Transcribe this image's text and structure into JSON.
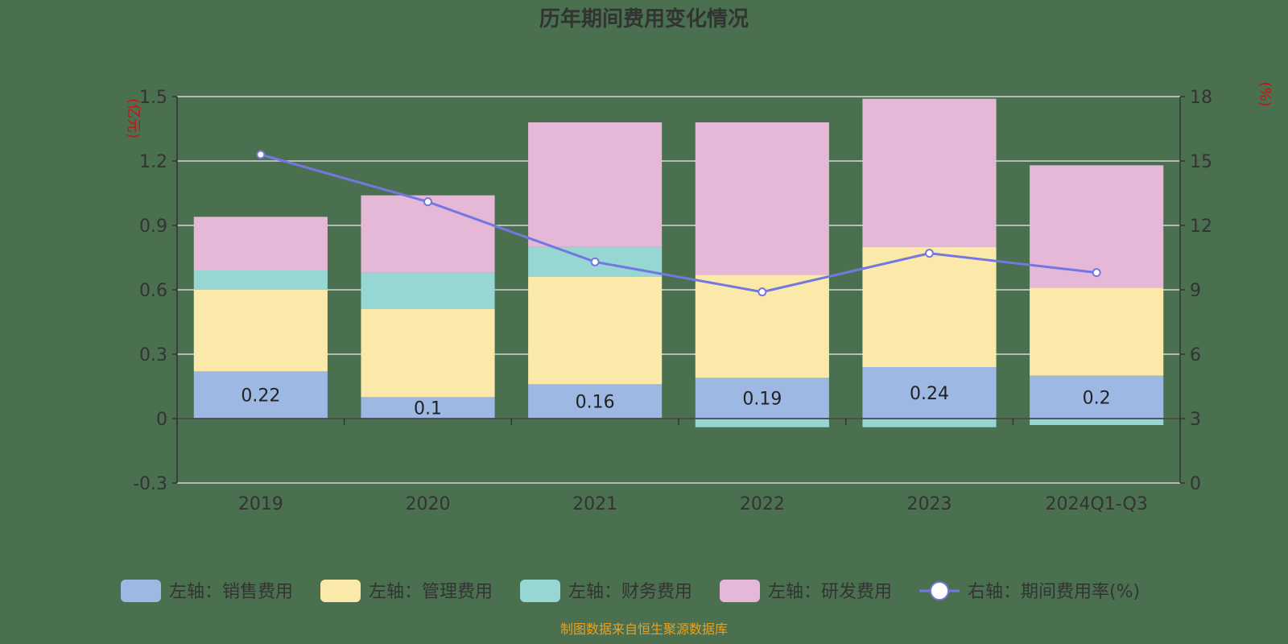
{
  "chart_data": {
    "type": "bar",
    "title": "历年期间费用变化情况",
    "categories": [
      "2019",
      "2020",
      "2021",
      "2022",
      "2023",
      "2024Q1-Q3"
    ],
    "left_axis": {
      "unit": "(亿元)",
      "ticks": [
        "1.5",
        "1.2",
        "0.9",
        "0.6",
        "0.3",
        "0",
        "-0.3"
      ],
      "ylim": [
        -0.3,
        1.5
      ]
    },
    "right_axis": {
      "unit": "(%)",
      "ticks": [
        "18",
        "15",
        "12",
        "9",
        "6",
        "3",
        "0"
      ],
      "ylim": [
        0,
        18
      ]
    },
    "series": [
      {
        "name": "左轴：销售费用",
        "kind": "bar",
        "color": "#9db8e3",
        "values": [
          0.22,
          0.1,
          0.16,
          0.19,
          0.24,
          0.2
        ]
      },
      {
        "name": "左轴：管理费用",
        "kind": "bar",
        "color": "#fbe9a9",
        "values": [
          0.38,
          0.41,
          0.5,
          0.48,
          0.56,
          0.41
        ]
      },
      {
        "name": "左轴：财务费用",
        "kind": "bar",
        "color": "#96d6d3",
        "values": [
          0.09,
          0.17,
          0.14,
          -0.04,
          -0.04,
          -0.03
        ]
      },
      {
        "name": "左轴：研发费用",
        "kind": "bar",
        "color": "#e6b8d8",
        "values": [
          0.25,
          0.36,
          0.58,
          0.71,
          0.69,
          0.57
        ]
      },
      {
        "name": "右轴：期间费用率(%)",
        "kind": "line",
        "color": "#7477e0",
        "values": [
          15.3,
          13.1,
          10.3,
          8.9,
          10.7,
          9.8
        ]
      }
    ],
    "data_labels": [
      "0.22",
      "0.1",
      "0.16",
      "0.19",
      "0.24",
      "0.2"
    ],
    "grid": true,
    "legend_position": "bottom"
  },
  "source_note": "制图数据来自恒生聚源数据库"
}
